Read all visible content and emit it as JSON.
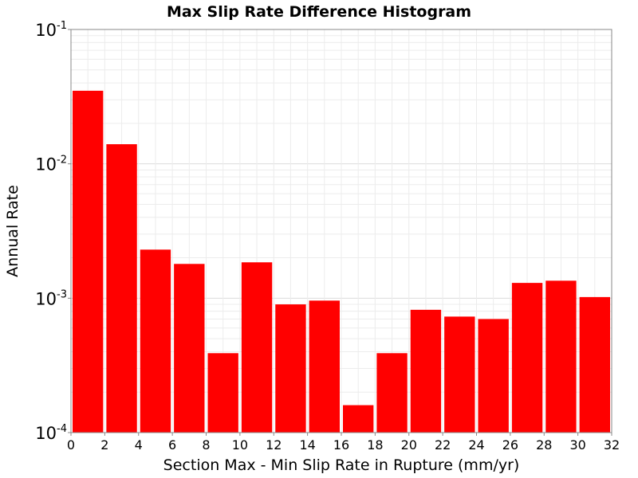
{
  "chart_data": {
    "type": "bar",
    "title": "Max Slip Rate Difference Histogram",
    "xlabel": "Section Max - Min Slip Rate in Rupture (mm/yr)",
    "ylabel": "Annual Rate",
    "y_scale": "log",
    "ylim": [
      0.0001,
      0.1
    ],
    "xlim": [
      0,
      32
    ],
    "bin_width": 2,
    "x_bin_starts": [
      0,
      2,
      4,
      6,
      8,
      10,
      12,
      14,
      16,
      18,
      20,
      22,
      24,
      26,
      28,
      30
    ],
    "values": [
      0.035,
      0.014,
      0.0023,
      0.0018,
      0.00039,
      0.00185,
      0.0009,
      0.00096,
      0.00016,
      0.00039,
      0.00082,
      0.00073,
      0.0007,
      0.0013,
      0.00135,
      0.00102
    ],
    "x_ticks": [
      "0",
      "2",
      "4",
      "6",
      "8",
      "10",
      "12",
      "14",
      "16",
      "18",
      "20",
      "22",
      "24",
      "26",
      "28",
      "30",
      "32"
    ],
    "y_ticks": [
      {
        "base": "10",
        "exp": "-4",
        "value": 0.0001
      },
      {
        "base": "10",
        "exp": "-3",
        "value": 0.001
      },
      {
        "base": "10",
        "exp": "-2",
        "value": 0.01
      },
      {
        "base": "10",
        "exp": "-1",
        "value": 0.1
      }
    ],
    "grid": true,
    "bar_color": "#ff0000"
  }
}
